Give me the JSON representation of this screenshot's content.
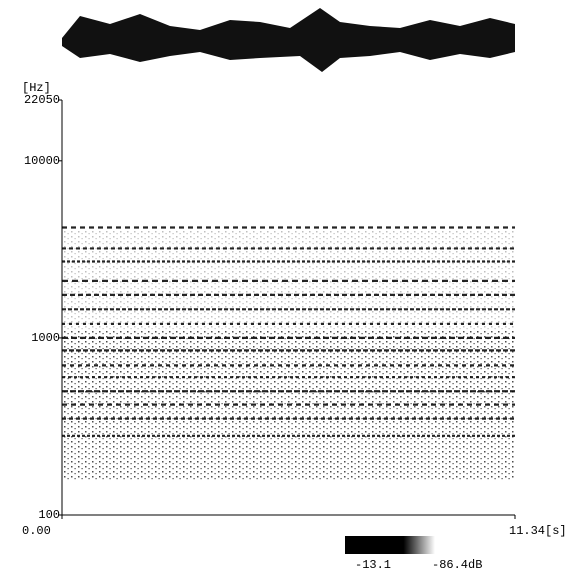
{
  "chart_data": {
    "type": "spectrogram",
    "y_label": "[Hz]",
    "log_y": true,
    "ylim": [
      100,
      22050
    ],
    "yticks": [
      100,
      1000,
      10000,
      22050
    ],
    "xlim": [
      0,
      11.34
    ],
    "xticks": [
      {
        "value": 0,
        "label": "0.00"
      },
      {
        "value": 11.34,
        "label": "11.34[s]"
      }
    ],
    "color": "#000000",
    "harmonics": [
      280,
      350,
      420,
      500,
      600,
      700,
      850,
      1000,
      1200,
      1450,
      1750,
      2100,
      2700,
      3200,
      4200
    ],
    "colorbar": {
      "ticks": [
        {
          "value": -13.1,
          "label": "-13.1"
        },
        {
          "value": -86.4,
          "label": "-86.4dB"
        }
      ]
    }
  }
}
